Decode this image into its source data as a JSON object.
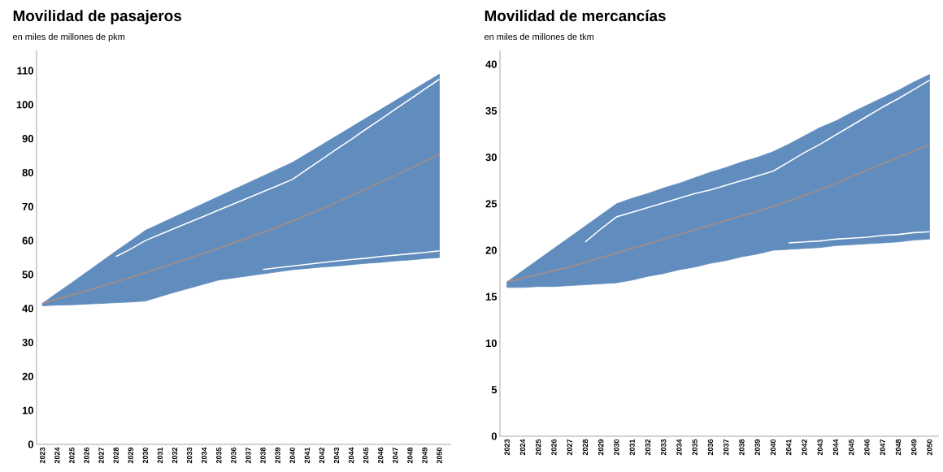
{
  "chart_data": [
    {
      "type": "line",
      "title": "Movilidad de pasajeros",
      "subtitle": "en miles de millones de pkm",
      "categories": [
        "2023",
        "2024",
        "2025",
        "2026",
        "2027",
        "2028",
        "2029",
        "2030",
        "2031",
        "2032",
        "2033",
        "2034",
        "2035",
        "2036",
        "2037",
        "2038",
        "2039",
        "2040",
        "2041",
        "2042",
        "2043",
        "2044",
        "2045",
        "2046",
        "2047",
        "2048",
        "2049",
        "2050"
      ],
      "ylim": [
        0,
        116
      ],
      "yticks": [
        0,
        10,
        20,
        30,
        40,
        50,
        60,
        70,
        80,
        90,
        100,
        110
      ],
      "series": [
        {
          "color": "#9c8c8c",
          "values": [
            41.5,
            42.8,
            44.0,
            45.2,
            46.5,
            47.8,
            49.2,
            50.6,
            52.0,
            53.4,
            54.8,
            56.3,
            57.8,
            59.3,
            60.8,
            62.4,
            64.0,
            65.7,
            67.5,
            69.3,
            71.2,
            73.2,
            75.2,
            77.2,
            79.2,
            81.3,
            83.4,
            85.5
          ],
          "lower": [
            40.8,
            41.0,
            41.1,
            41.3,
            41.5,
            41.7,
            41.9,
            42.2,
            43.5,
            44.8,
            46.0,
            47.2,
            48.4,
            49.0,
            49.6,
            50.2,
            50.8,
            51.4,
            51.8,
            52.2,
            52.5,
            52.9,
            53.3,
            53.6,
            54.0,
            54.3,
            54.7,
            55.0
          ],
          "upper": [
            41.5,
            44.6,
            47.6,
            50.7,
            53.8,
            56.9,
            59.9,
            63.0,
            65.0,
            67.0,
            69.0,
            71.0,
            73.0,
            75.0,
            77.0,
            79.0,
            81.0,
            83.0,
            85.6,
            88.2,
            90.8,
            93.4,
            96.0,
            98.6,
            101.2,
            103.8,
            106.4,
            109.0
          ]
        },
        {
          "color": "#ffffff",
          "values": [
            null,
            null,
            null,
            null,
            null,
            55.3,
            57.5,
            60.0,
            61.8,
            63.6,
            65.4,
            67.2,
            69.0,
            70.8,
            72.6,
            74.4,
            76.2,
            78.0,
            81.0,
            83.9,
            86.9,
            89.8,
            92.8,
            95.7,
            98.7,
            101.6,
            104.6,
            107.5
          ]
        },
        {
          "color": "#ffffff",
          "values": [
            null,
            null,
            null,
            null,
            null,
            null,
            null,
            null,
            null,
            null,
            null,
            null,
            null,
            null,
            null,
            51.5,
            52.0,
            52.5,
            53.0,
            53.5,
            54.0,
            54.4,
            54.8,
            55.3,
            55.7,
            56.1,
            56.5,
            57.0
          ]
        }
      ]
    },
    {
      "type": "line",
      "title": "Movilidad de mercancías",
      "subtitle": "en miles de millones de tkm",
      "categories": [
        "2023",
        "2024",
        "2025",
        "2026",
        "2027",
        "2028",
        "2029",
        "2030",
        "2031",
        "2032",
        "2033",
        "2034",
        "2035",
        "2036",
        "2037",
        "2038",
        "2039",
        "2040",
        "2041",
        "2042",
        "2043",
        "2044",
        "2045",
        "2046",
        "2047",
        "2048",
        "2049",
        "2050"
      ],
      "ylim": [
        0,
        41.5
      ],
      "yticks": [
        0,
        5,
        10,
        15,
        20,
        25,
        30,
        35,
        40
      ],
      "series": [
        {
          "color": "#9c8c8c",
          "values": [
            16.6,
            17.0,
            17.4,
            17.8,
            18.2,
            18.7,
            19.2,
            19.7,
            20.2,
            20.7,
            21.2,
            21.7,
            22.2,
            22.7,
            23.2,
            23.7,
            24.2,
            24.7,
            25.3,
            25.9,
            26.5,
            27.2,
            27.9,
            28.6,
            29.3,
            30.0,
            30.7,
            31.4
          ],
          "lower": [
            16.0,
            16.0,
            16.1,
            16.1,
            16.2,
            16.3,
            16.4,
            16.5,
            16.8,
            17.2,
            17.5,
            17.9,
            18.2,
            18.6,
            18.9,
            19.3,
            19.6,
            20.0,
            20.1,
            20.2,
            20.3,
            20.5,
            20.6,
            20.7,
            20.8,
            20.9,
            21.1,
            21.2
          ],
          "upper": [
            16.6,
            17.8,
            19.0,
            20.2,
            21.4,
            22.6,
            23.8,
            25.0,
            25.6,
            26.1,
            26.7,
            27.2,
            27.8,
            28.4,
            28.9,
            29.5,
            30.0,
            30.6,
            31.4,
            32.3,
            33.2,
            33.9,
            34.8,
            35.6,
            36.4,
            37.2,
            38.1,
            38.9
          ]
        },
        {
          "color": "#ffffff",
          "values": [
            null,
            null,
            null,
            null,
            null,
            20.9,
            22.3,
            23.6,
            24.1,
            24.6,
            25.1,
            25.6,
            26.1,
            26.5,
            27.0,
            27.5,
            28.0,
            28.5,
            29.5,
            30.5,
            31.4,
            32.4,
            33.4,
            34.4,
            35.4,
            36.3,
            37.3,
            38.3
          ]
        },
        {
          "color": "#ffffff",
          "values": [
            null,
            null,
            null,
            null,
            null,
            null,
            null,
            null,
            null,
            null,
            null,
            null,
            null,
            null,
            null,
            null,
            null,
            null,
            20.8,
            20.9,
            21.0,
            21.2,
            21.3,
            21.4,
            21.6,
            21.7,
            21.9,
            22.0
          ]
        }
      ]
    }
  ]
}
